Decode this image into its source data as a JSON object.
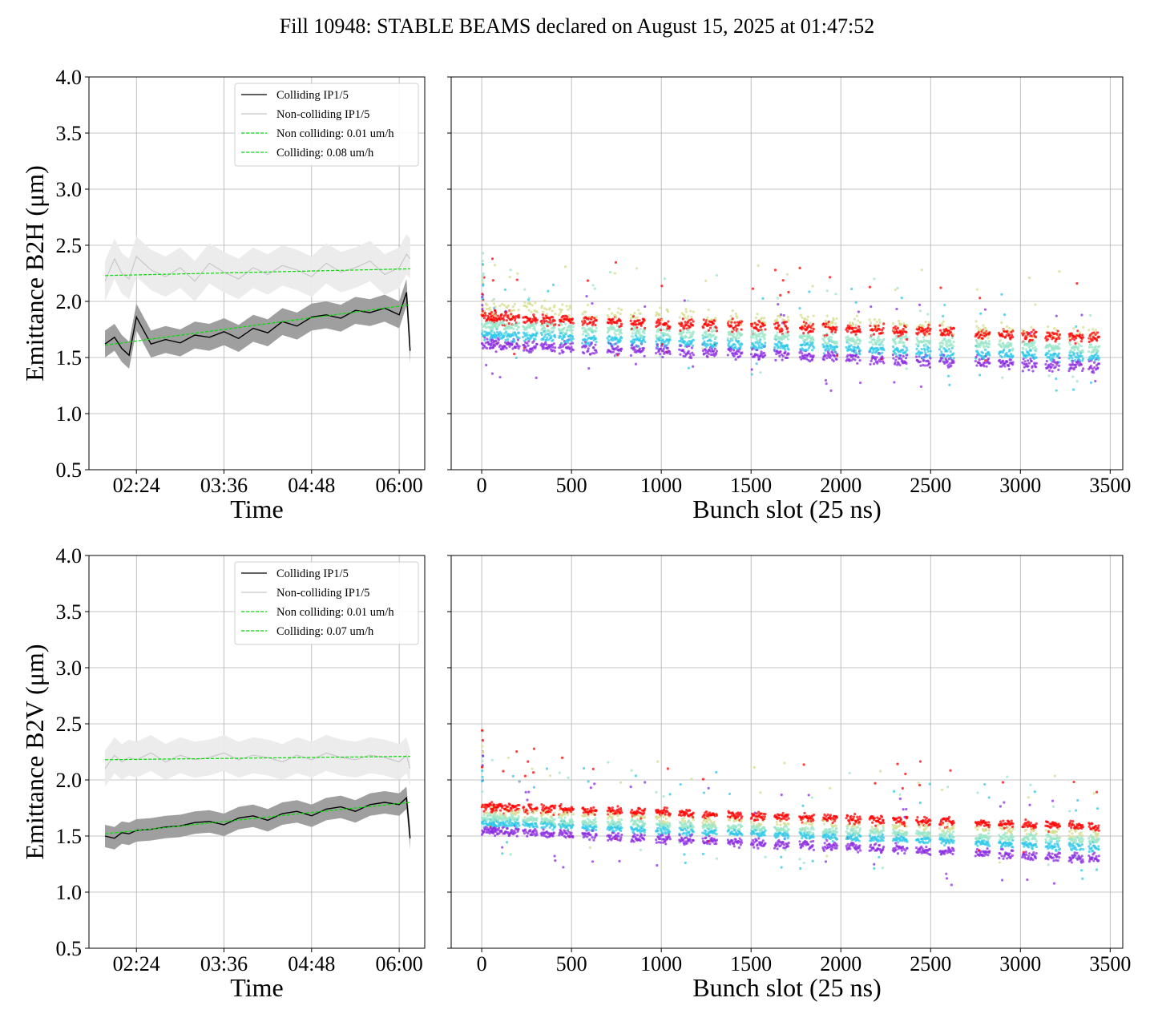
{
  "figure": {
    "title": "Fill 10948: STABLE BEAMS declared on August 15, 2025 at 01:47:52"
  },
  "colors": {
    "colliding": "#000000",
    "non_colliding": "#c8c8c8",
    "fit": "#00e000",
    "band_colliding": "#9a9a9a",
    "band_non_colliding": "#ebebeb",
    "scatter_palette": [
      "#8b2be2",
      "#2fc8e8",
      "#9ae6c8",
      "#d4dc8c",
      "#ff0000"
    ]
  },
  "chart_data": [
    {
      "id": "time-b2h",
      "type": "line",
      "ylabel": "Emittance B2H (μm)",
      "xlabel": "Time",
      "ylim": [
        0.5,
        4.0
      ],
      "yticks": [
        "0.5",
        "1.0",
        "1.5",
        "2.0",
        "2.5",
        "3.0",
        "3.5",
        "4.0"
      ],
      "xlim_hours": [
        1.75,
        6.35
      ],
      "xticks": [
        {
          "label": "02:24",
          "hour": 2.4
        },
        {
          "label": "03:36",
          "hour": 3.6
        },
        {
          "label": "04:48",
          "hour": 4.8
        },
        {
          "label": "06:00",
          "hour": 6.0
        }
      ],
      "grid": true,
      "legend_position": "top-right",
      "legend": [
        "Colliding IP1/5",
        "Non-colliding IP1/5",
        "Non colliding: 0.01 um/h",
        "Colliding: 0.08 um/h"
      ],
      "series": [
        {
          "name": "Colliding IP1/5",
          "x_hours": [
            1.97,
            2.1,
            2.2,
            2.3,
            2.4,
            2.6,
            2.8,
            3.0,
            3.2,
            3.4,
            3.6,
            3.8,
            4.0,
            4.2,
            4.4,
            4.6,
            4.8,
            5.0,
            5.2,
            5.4,
            5.6,
            5.8,
            6.0,
            6.1,
            6.15
          ],
          "y": [
            1.62,
            1.68,
            1.58,
            1.52,
            1.86,
            1.62,
            1.66,
            1.63,
            1.7,
            1.68,
            1.73,
            1.67,
            1.76,
            1.72,
            1.82,
            1.78,
            1.86,
            1.88,
            1.85,
            1.92,
            1.9,
            1.94,
            1.88,
            2.08,
            1.56
          ],
          "band": 0.12
        },
        {
          "name": "Non-colliding IP1/5",
          "x_hours": [
            1.97,
            2.1,
            2.2,
            2.3,
            2.4,
            2.6,
            2.8,
            3.0,
            3.2,
            3.4,
            3.6,
            3.8,
            4.0,
            4.2,
            4.4,
            4.6,
            4.8,
            5.0,
            5.2,
            5.4,
            5.6,
            5.8,
            6.0,
            6.1,
            6.15
          ],
          "y": [
            2.18,
            2.38,
            2.25,
            2.2,
            2.4,
            2.28,
            2.22,
            2.3,
            2.18,
            2.34,
            2.26,
            2.2,
            2.3,
            2.24,
            2.32,
            2.28,
            2.22,
            2.34,
            2.26,
            2.3,
            2.36,
            2.24,
            2.3,
            2.42,
            2.38
          ],
          "band": 0.18
        },
        {
          "name": "Non colliding: 0.01 um/h",
          "x_hours": [
            1.97,
            6.15
          ],
          "y": [
            2.23,
            2.29
          ],
          "style": "dashed"
        },
        {
          "name": "Colliding: 0.08 um/h",
          "x_hours": [
            1.97,
            6.15
          ],
          "y": [
            1.61,
            1.97
          ],
          "style": "dashed"
        }
      ]
    },
    {
      "id": "bunch-b2h",
      "type": "scatter",
      "xlabel": "Bunch slot (25 ns)",
      "ylim": [
        0.5,
        4.0
      ],
      "xlim": [
        -170,
        3570
      ],
      "xticks": [
        0,
        500,
        1000,
        1500,
        2000,
        2500,
        3000,
        3500
      ],
      "grid": true,
      "trains": [
        0,
        50,
        130,
        230,
        330,
        430,
        560,
        700,
        830,
        970,
        1100,
        1230,
        1370,
        1500,
        1630,
        1770,
        1900,
        2030,
        2160,
        2290,
        2420,
        2550,
        2750,
        2880,
        3010,
        3140,
        3270,
        3380
      ],
      "train_length": 80,
      "layers": [
        {
          "name": "violet",
          "start": 1.62,
          "end": 1.42,
          "spread": 0.08
        },
        {
          "name": "cyan",
          "start": 1.7,
          "end": 1.5,
          "spread": 0.07
        },
        {
          "name": "aqua",
          "start": 1.78,
          "end": 1.58,
          "spread": 0.07
        },
        {
          "name": "olive",
          "start": 1.95,
          "end": 1.7,
          "spread": 0.1
        },
        {
          "name": "red",
          "start": 1.86,
          "end": 1.68,
          "spread": 0.08
        }
      ]
    },
    {
      "id": "time-b2v",
      "type": "line",
      "ylabel": "Emittance B2V (μm)",
      "xlabel": "Time",
      "ylim": [
        0.5,
        4.0
      ],
      "yticks": [
        "0.5",
        "1.0",
        "1.5",
        "2.0",
        "2.5",
        "3.0",
        "3.5",
        "4.0"
      ],
      "xlim_hours": [
        1.75,
        6.35
      ],
      "xticks": [
        {
          "label": "02:24",
          "hour": 2.4
        },
        {
          "label": "03:36",
          "hour": 3.6
        },
        {
          "label": "04:48",
          "hour": 4.8
        },
        {
          "label": "06:00",
          "hour": 6.0
        }
      ],
      "grid": true,
      "legend_position": "top-right",
      "legend": [
        "Colliding IP1/5",
        "Non-colliding IP1/5",
        "Non colliding: 0.01 um/h",
        "Colliding: 0.07 um/h"
      ],
      "series": [
        {
          "name": "Colliding IP1/5",
          "x_hours": [
            1.97,
            2.1,
            2.2,
            2.3,
            2.4,
            2.6,
            2.8,
            3.0,
            3.2,
            3.4,
            3.6,
            3.8,
            4.0,
            4.2,
            4.4,
            4.6,
            4.8,
            5.0,
            5.2,
            5.4,
            5.6,
            5.8,
            6.0,
            6.1,
            6.15
          ],
          "y": [
            1.5,
            1.48,
            1.53,
            1.52,
            1.55,
            1.56,
            1.58,
            1.59,
            1.62,
            1.63,
            1.6,
            1.66,
            1.68,
            1.64,
            1.7,
            1.72,
            1.68,
            1.74,
            1.76,
            1.72,
            1.78,
            1.8,
            1.78,
            1.84,
            1.48
          ],
          "band": 0.1
        },
        {
          "name": "Non-colliding IP1/5",
          "x_hours": [
            1.97,
            2.1,
            2.2,
            2.3,
            2.4,
            2.6,
            2.8,
            3.0,
            3.2,
            3.4,
            3.6,
            3.8,
            4.0,
            4.2,
            4.4,
            4.6,
            4.8,
            5.0,
            5.2,
            5.4,
            5.6,
            5.8,
            6.0,
            6.1,
            6.15
          ],
          "y": [
            2.1,
            2.22,
            2.16,
            2.2,
            2.18,
            2.24,
            2.16,
            2.22,
            2.18,
            2.2,
            2.24,
            2.18,
            2.22,
            2.2,
            2.16,
            2.22,
            2.18,
            2.24,
            2.2,
            2.18,
            2.22,
            2.2,
            2.16,
            2.22,
            2.1
          ],
          "band": 0.16
        },
        {
          "name": "Non colliding: 0.01 um/h",
          "x_hours": [
            1.97,
            6.15
          ],
          "y": [
            2.18,
            2.21
          ],
          "style": "dashed"
        },
        {
          "name": "Colliding: 0.07 um/h",
          "x_hours": [
            1.97,
            6.15
          ],
          "y": [
            1.52,
            1.8
          ],
          "style": "dashed"
        }
      ]
    },
    {
      "id": "bunch-b2v",
      "type": "scatter",
      "xlabel": "Bunch slot (25 ns)",
      "ylim": [
        0.5,
        4.0
      ],
      "xlim": [
        -170,
        3570
      ],
      "xticks": [
        0,
        500,
        1000,
        1500,
        2000,
        2500,
        3000,
        3500
      ],
      "grid": true,
      "trains": [
        0,
        50,
        130,
        230,
        330,
        430,
        560,
        700,
        830,
        970,
        1100,
        1230,
        1370,
        1500,
        1630,
        1770,
        1900,
        2030,
        2160,
        2290,
        2420,
        2550,
        2750,
        2880,
        3010,
        3140,
        3270,
        3380
      ],
      "train_length": 80,
      "layers": [
        {
          "name": "violet",
          "start": 1.55,
          "end": 1.3,
          "spread": 0.06
        },
        {
          "name": "cyan",
          "start": 1.62,
          "end": 1.4,
          "spread": 0.05
        },
        {
          "name": "aqua",
          "start": 1.66,
          "end": 1.46,
          "spread": 0.05
        },
        {
          "name": "olive",
          "start": 1.72,
          "end": 1.52,
          "spread": 0.06
        },
        {
          "name": "red",
          "start": 1.76,
          "end": 1.58,
          "spread": 0.06
        }
      ]
    }
  ]
}
